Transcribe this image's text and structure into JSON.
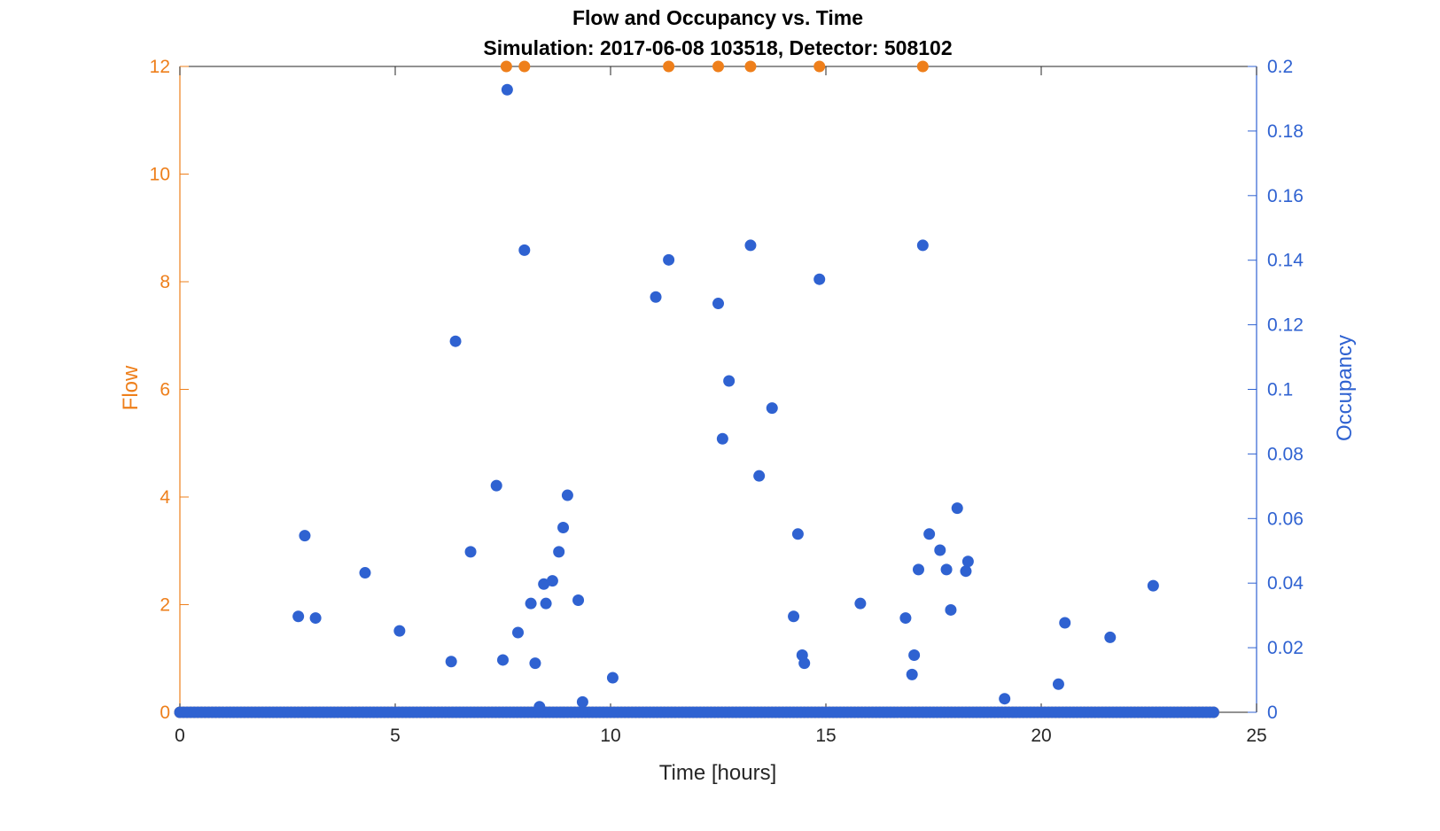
{
  "chart_data": {
    "type": "scatter",
    "title": "Flow and Occupancy vs. Time",
    "subtitle": "Simulation:  2017-06-08 103518,  Detector:  508102",
    "xlabel": "Time [hours]",
    "ylabel_left": "Flow",
    "ylabel_right": "Occupancy",
    "xlim": [
      0,
      25
    ],
    "ylim_left": [
      0,
      12
    ],
    "ylim_right": [
      0,
      0.2
    ],
    "x_ticks": [
      "0",
      "5",
      "10",
      "15",
      "20",
      "25"
    ],
    "y_left_ticks": [
      "0",
      "2",
      "4",
      "6",
      "8",
      "10",
      "12"
    ],
    "y_right_ticks": [
      "0",
      "0.02",
      "0.04",
      "0.06",
      "0.08",
      "0.1",
      "0.12",
      "0.14",
      "0.16",
      "0.18",
      "0.2"
    ],
    "grid": false,
    "colors": {
      "flow": "#EE7F1B",
      "occupancy": "#2F62D1",
      "axis": "#262626"
    },
    "series": [
      {
        "axis": "left",
        "color": "#EE7F1B",
        "baseline_value": 0,
        "baseline_x_range": [
          0,
          24
        ],
        "points": [
          {
            "x": 7.58,
            "y": 12
          },
          {
            "x": 8.0,
            "y": 12
          },
          {
            "x": 11.35,
            "y": 12
          },
          {
            "x": 12.5,
            "y": 12
          },
          {
            "x": 13.25,
            "y": 12
          },
          {
            "x": 14.85,
            "y": 12
          },
          {
            "x": 17.25,
            "y": 12
          }
        ]
      },
      {
        "axis": "right",
        "color": "#2F62D1",
        "baseline_value": 0,
        "baseline_x_range": [
          0,
          24
        ],
        "points": [
          {
            "x": 2.75,
            "y": 0.0297
          },
          {
            "x": 2.9,
            "y": 0.0547
          },
          {
            "x": 3.15,
            "y": 0.0292
          },
          {
            "x": 4.3,
            "y": 0.0432
          },
          {
            "x": 5.1,
            "y": 0.0252
          },
          {
            "x": 6.3,
            "y": 0.0157
          },
          {
            "x": 6.4,
            "y": 0.1149
          },
          {
            "x": 6.75,
            "y": 0.0497
          },
          {
            "x": 7.35,
            "y": 0.0702
          },
          {
            "x": 7.5,
            "y": 0.0162
          },
          {
            "x": 7.6,
            "y": 0.1928
          },
          {
            "x": 7.85,
            "y": 0.0247
          },
          {
            "x": 8.0,
            "y": 0.1431
          },
          {
            "x": 8.15,
            "y": 0.0337
          },
          {
            "x": 8.25,
            "y": 0.0152
          },
          {
            "x": 8.35,
            "y": 0.0017
          },
          {
            "x": 8.45,
            "y": 0.0397
          },
          {
            "x": 8.5,
            "y": 0.0337
          },
          {
            "x": 8.65,
            "y": 0.0407
          },
          {
            "x": 8.8,
            "y": 0.0497
          },
          {
            "x": 8.9,
            "y": 0.0572
          },
          {
            "x": 9.0,
            "y": 0.0672
          },
          {
            "x": 9.25,
            "y": 0.0347
          },
          {
            "x": 9.35,
            "y": 0.0032
          },
          {
            "x": 10.05,
            "y": 0.0107
          },
          {
            "x": 11.05,
            "y": 0.1286
          },
          {
            "x": 11.35,
            "y": 0.1401
          },
          {
            "x": 12.5,
            "y": 0.1266
          },
          {
            "x": 12.6,
            "y": 0.0847
          },
          {
            "x": 12.75,
            "y": 0.1026
          },
          {
            "x": 13.25,
            "y": 0.1446
          },
          {
            "x": 13.45,
            "y": 0.0732
          },
          {
            "x": 13.75,
            "y": 0.0942
          },
          {
            "x": 14.25,
            "y": 0.0297
          },
          {
            "x": 14.35,
            "y": 0.0552
          },
          {
            "x": 14.45,
            "y": 0.0177
          },
          {
            "x": 14.5,
            "y": 0.0152
          },
          {
            "x": 14.85,
            "y": 0.1341
          },
          {
            "x": 15.8,
            "y": 0.0337
          },
          {
            "x": 16.85,
            "y": 0.0292
          },
          {
            "x": 17.0,
            "y": 0.0117
          },
          {
            "x": 17.05,
            "y": 0.0177
          },
          {
            "x": 17.15,
            "y": 0.0442
          },
          {
            "x": 17.25,
            "y": 0.1446
          },
          {
            "x": 17.4,
            "y": 0.0552
          },
          {
            "x": 17.65,
            "y": 0.0502
          },
          {
            "x": 17.8,
            "y": 0.0442
          },
          {
            "x": 17.9,
            "y": 0.0317
          },
          {
            "x": 18.05,
            "y": 0.0632
          },
          {
            "x": 18.25,
            "y": 0.0437
          },
          {
            "x": 18.3,
            "y": 0.0467
          },
          {
            "x": 19.15,
            "y": 0.0042
          },
          {
            "x": 20.4,
            "y": 0.0087
          },
          {
            "x": 20.55,
            "y": 0.0277
          },
          {
            "x": 21.6,
            "y": 0.0232
          },
          {
            "x": 22.6,
            "y": 0.0392
          }
        ]
      }
    ]
  }
}
